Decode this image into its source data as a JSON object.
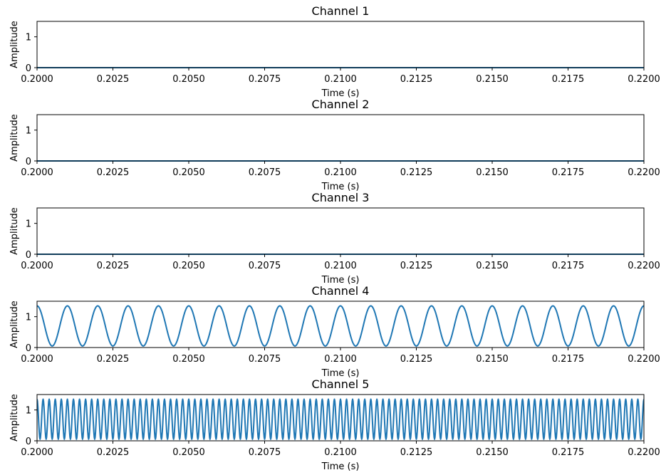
{
  "chart_data": [
    {
      "type": "line",
      "title": "Channel 1",
      "xlabel": "Time (s)",
      "ylabel": "Amplitude",
      "xlim": [
        0.2,
        0.22
      ],
      "ylim": [
        0,
        1.5
      ],
      "xticks": [
        "0.2000",
        "0.2025",
        "0.2050",
        "0.2075",
        "0.2100",
        "0.2125",
        "0.2150",
        "0.2175",
        "0.2200"
      ],
      "yticks": [
        "0",
        "1"
      ],
      "grid": false,
      "series": [
        {
          "color": "#1f77b4",
          "frequency_hz": 0,
          "dc_offset": 0,
          "amplitude": 0
        }
      ]
    },
    {
      "type": "line",
      "title": "Channel 2",
      "xlabel": "Time (s)",
      "ylabel": "Amplitude",
      "xlim": [
        0.2,
        0.22
      ],
      "ylim": [
        0,
        1.5
      ],
      "xticks": [
        "0.2000",
        "0.2025",
        "0.2050",
        "0.2075",
        "0.2100",
        "0.2125",
        "0.2150",
        "0.2175",
        "0.2200"
      ],
      "yticks": [
        "0",
        "1"
      ],
      "grid": false,
      "series": [
        {
          "color": "#1f77b4",
          "frequency_hz": 0,
          "dc_offset": 0,
          "amplitude": 0
        }
      ]
    },
    {
      "type": "line",
      "title": "Channel 3",
      "xlabel": "Time (s)",
      "ylabel": "Amplitude",
      "xlim": [
        0.2,
        0.22
      ],
      "ylim": [
        0,
        1.5
      ],
      "xticks": [
        "0.2000",
        "0.2025",
        "0.2050",
        "0.2075",
        "0.2100",
        "0.2125",
        "0.2150",
        "0.2175",
        "0.2200"
      ],
      "yticks": [
        "0",
        "1"
      ],
      "grid": false,
      "series": [
        {
          "color": "#1f77b4",
          "frequency_hz": 0,
          "dc_offset": 0,
          "amplitude": 0
        }
      ]
    },
    {
      "type": "line",
      "title": "Channel 4",
      "xlabel": "Time (s)",
      "ylabel": "Amplitude",
      "xlim": [
        0.2,
        0.22
      ],
      "ylim": [
        0,
        1.5
      ],
      "xticks": [
        "0.2000",
        "0.2025",
        "0.2050",
        "0.2075",
        "0.2100",
        "0.2125",
        "0.2150",
        "0.2175",
        "0.2200"
      ],
      "yticks": [
        "0",
        "1"
      ],
      "grid": false,
      "series": [
        {
          "color": "#1f77b4",
          "frequency_hz": 1000,
          "dc_offset": 0.7,
          "amplitude": 0.65
        }
      ]
    },
    {
      "type": "line",
      "title": "Channel 5",
      "xlabel": "Time (s)",
      "ylabel": "Amplitude",
      "xlim": [
        0.2,
        0.22
      ],
      "ylim": [
        0,
        1.5
      ],
      "xticks": [
        "0.2000",
        "0.2025",
        "0.2050",
        "0.2075",
        "0.2100",
        "0.2125",
        "0.2150",
        "0.2175",
        "0.2200"
      ],
      "yticks": [
        "0",
        "1"
      ],
      "grid": false,
      "series": [
        {
          "color": "#1f77b4",
          "frequency_hz": 5000,
          "dc_offset": 0.7,
          "amplitude": 0.65
        }
      ]
    }
  ]
}
